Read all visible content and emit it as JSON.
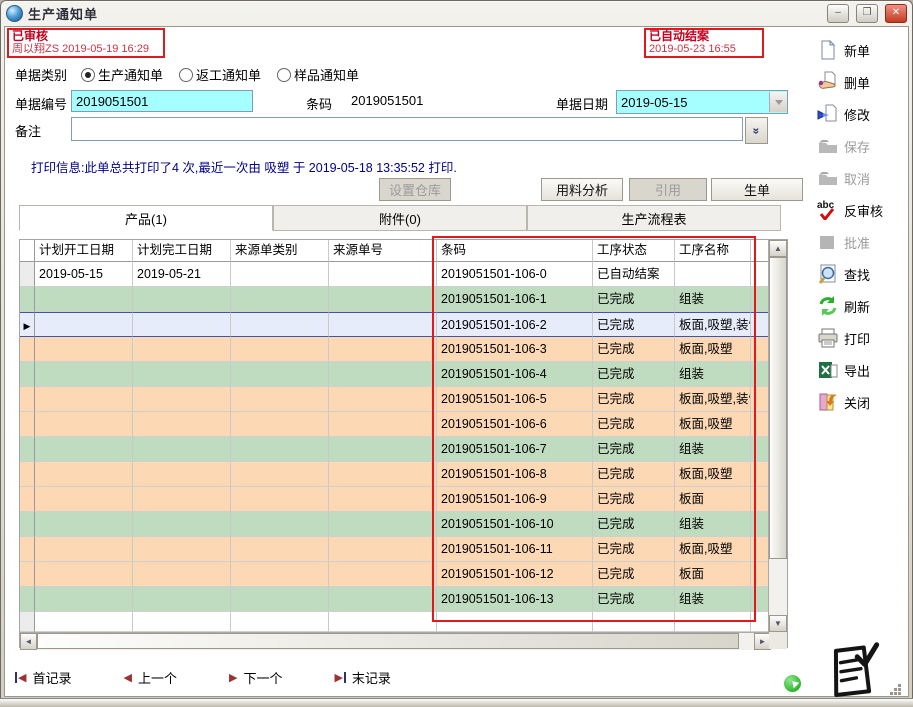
{
  "window": {
    "title": "生产通知单",
    "controls": {
      "minimize": "–",
      "maximize": "❐",
      "close": "✕"
    }
  },
  "annotations": {
    "audit": {
      "line1": "已审核",
      "line2": "周以翔ZS 2019-05-19 16:29"
    },
    "closed": {
      "line1": "已自动结案",
      "line2": "2019-05-23 16:55"
    }
  },
  "form": {
    "doc_type": {
      "label": "单据类别",
      "options": [
        {
          "label": "生产通知单",
          "selected": true
        },
        {
          "label": "返工通知单",
          "selected": false
        },
        {
          "label": "样品通知单",
          "selected": false
        }
      ]
    },
    "doc_no": {
      "label": "单据编号",
      "value": "2019051501"
    },
    "barcode": {
      "label": "条码",
      "value": "2019051501"
    },
    "doc_date": {
      "label": "单据日期",
      "value": "2019-05-15"
    },
    "remark": {
      "label": "备注",
      "value": ""
    }
  },
  "print_info": "打印信息:此单总共打印了4 次,最近一次由 吸塑 于 2019-05-18 13:35:52  打印.",
  "action_buttons": [
    {
      "label": "设置仓库",
      "enabled": false
    },
    {
      "label": "用料分析",
      "enabled": true
    },
    {
      "label": "引用",
      "enabled": false
    },
    {
      "label": "生单",
      "enabled": true
    }
  ],
  "tabs": [
    {
      "label": "产品(1)",
      "active": true
    },
    {
      "label": "附件(0)",
      "active": false
    },
    {
      "label": "生产流程表",
      "active": false
    }
  ],
  "table": {
    "columns": [
      "计划开工日期",
      "计划完工日期",
      "来源单类别",
      "来源单号",
      "条码",
      "工序状态",
      "工序名称"
    ],
    "rows": [
      {
        "plan_start": "2019-05-15",
        "plan_end": "2019-05-21",
        "source_type": "",
        "source_no": "",
        "barcode": "2019051501-106-0",
        "status": "已自动结案",
        "process": "",
        "tone": "white",
        "selected": false
      },
      {
        "plan_start": "",
        "plan_end": "",
        "source_type": "",
        "source_no": "",
        "barcode": "2019051501-106-1",
        "status": "已完成",
        "process": "组装",
        "tone": "green",
        "selected": false
      },
      {
        "plan_start": "",
        "plan_end": "",
        "source_type": "",
        "source_no": "",
        "barcode": "2019051501-106-2",
        "status": "已完成",
        "process": "板面,吸塑,装饰",
        "tone": "selected",
        "selected": true
      },
      {
        "plan_start": "",
        "plan_end": "",
        "source_type": "",
        "source_no": "",
        "barcode": "2019051501-106-3",
        "status": "已完成",
        "process": "板面,吸塑",
        "tone": "orange",
        "selected": false
      },
      {
        "plan_start": "",
        "plan_end": "",
        "source_type": "",
        "source_no": "",
        "barcode": "2019051501-106-4",
        "status": "已完成",
        "process": "组装",
        "tone": "green",
        "selected": false
      },
      {
        "plan_start": "",
        "plan_end": "",
        "source_type": "",
        "source_no": "",
        "barcode": "2019051501-106-5",
        "status": "已完成",
        "process": "板面,吸塑,装饰",
        "tone": "orange",
        "selected": false
      },
      {
        "plan_start": "",
        "plan_end": "",
        "source_type": "",
        "source_no": "",
        "barcode": "2019051501-106-6",
        "status": "已完成",
        "process": "板面,吸塑",
        "tone": "orange",
        "selected": false
      },
      {
        "plan_start": "",
        "plan_end": "",
        "source_type": "",
        "source_no": "",
        "barcode": "2019051501-106-7",
        "status": "已完成",
        "process": "组装",
        "tone": "green",
        "selected": false
      },
      {
        "plan_start": "",
        "plan_end": "",
        "source_type": "",
        "source_no": "",
        "barcode": "2019051501-106-8",
        "status": "已完成",
        "process": "板面,吸塑",
        "tone": "orange",
        "selected": false
      },
      {
        "plan_start": "",
        "plan_end": "",
        "source_type": "",
        "source_no": "",
        "barcode": "2019051501-106-9",
        "status": "已完成",
        "process": "板面",
        "tone": "orange",
        "selected": false
      },
      {
        "plan_start": "",
        "plan_end": "",
        "source_type": "",
        "source_no": "",
        "barcode": "2019051501-106-10",
        "status": "已完成",
        "process": "组装",
        "tone": "green",
        "selected": false
      },
      {
        "plan_start": "",
        "plan_end": "",
        "source_type": "",
        "source_no": "",
        "barcode": "2019051501-106-11",
        "status": "已完成",
        "process": "板面,吸塑",
        "tone": "orange",
        "selected": false
      },
      {
        "plan_start": "",
        "plan_end": "",
        "source_type": "",
        "source_no": "",
        "barcode": "2019051501-106-12",
        "status": "已完成",
        "process": "板面",
        "tone": "orange",
        "selected": false
      },
      {
        "plan_start": "",
        "plan_end": "",
        "source_type": "",
        "source_no": "",
        "barcode": "2019051501-106-13",
        "status": "已完成",
        "process": "组装",
        "tone": "green",
        "selected": false
      }
    ]
  },
  "sidebar": [
    {
      "label": "新单",
      "icon": "new-doc-icon",
      "enabled": true
    },
    {
      "label": "删单",
      "icon": "delete-doc-icon",
      "enabled": true
    },
    {
      "label": "修改",
      "icon": "edit-doc-icon",
      "enabled": true
    },
    {
      "label": "保存",
      "icon": "save-icon",
      "enabled": false
    },
    {
      "label": "取消",
      "icon": "cancel-icon",
      "enabled": false
    },
    {
      "label": "反审核",
      "icon": "unaudit-icon",
      "enabled": true
    },
    {
      "label": "批准",
      "icon": "approve-icon",
      "enabled": false
    },
    {
      "label": "查找",
      "icon": "find-icon",
      "enabled": true
    },
    {
      "label": "刷新",
      "icon": "refresh-icon",
      "enabled": true
    },
    {
      "label": "打印",
      "icon": "print-icon",
      "enabled": true
    },
    {
      "label": "导出",
      "icon": "export-icon",
      "enabled": true
    },
    {
      "label": "关闭",
      "icon": "close-form-icon",
      "enabled": true
    }
  ],
  "record_nav": [
    {
      "label": "首记录",
      "kind": "first"
    },
    {
      "label": "上一个",
      "kind": "prev"
    },
    {
      "label": "下一个",
      "kind": "next"
    },
    {
      "label": "末记录",
      "kind": "last"
    }
  ],
  "colors": {
    "row_green": "#c0dcc0",
    "row_orange": "#fcd8b4",
    "row_selected": "#e7ecfb",
    "field_highlight": "#a6ffff",
    "annotation_red": "#e1191c",
    "print_info_blue": "#00008b"
  }
}
